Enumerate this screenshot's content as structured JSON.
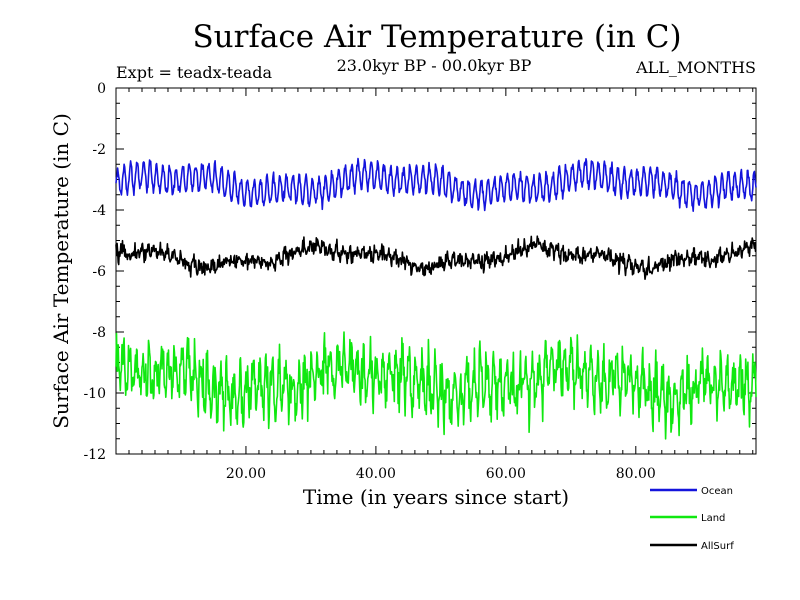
{
  "chart_data": {
    "type": "line",
    "title": "Surface Air Temperature (in C)",
    "subtitle": "23.0kyr BP - 00.0kyr BP",
    "experiment_label": "Expt = teadx-teada",
    "months_label": "ALL_MONTHS",
    "xlabel": "Time (in years since start)",
    "ylabel": "Surface Air Temperature (in C)",
    "xlim": [
      0,
      98.5
    ],
    "ylim": [
      -12,
      0
    ],
    "x_ticks": [
      20,
      40,
      60,
      80
    ],
    "x_tick_labels": [
      "20.00",
      "40.00",
      "60.00",
      "80.00"
    ],
    "y_ticks": [
      0,
      -2,
      -4,
      -6,
      -8,
      -10,
      -12
    ],
    "y_tick_labels": [
      "0",
      "-2",
      "-4",
      "-6",
      "-8",
      "-10",
      "-12"
    ],
    "grid": false,
    "legend_placement": "bottom-right",
    "series": [
      {
        "name": "Ocean",
        "color": "#1414dc",
        "mean": -3.15,
        "seasonal_amplitude": 0.42,
        "noise": 0.12,
        "low_freq_amplitude": 0.25,
        "approx_range": [
          -4.2,
          -2.0
        ]
      },
      {
        "name": "Land",
        "color": "#10e810",
        "mean": -9.6,
        "seasonal_amplitude": 0.6,
        "noise": 0.55,
        "low_freq_amplitude": 0.35,
        "approx_range": [
          -11.5,
          -8.0
        ]
      },
      {
        "name": "AllSurf",
        "color": "#000000",
        "mean": -5.55,
        "seasonal_amplitude": 0.12,
        "noise": 0.18,
        "low_freq_amplitude": 0.25,
        "approx_range": [
          -6.5,
          -4.7
        ]
      }
    ]
  }
}
